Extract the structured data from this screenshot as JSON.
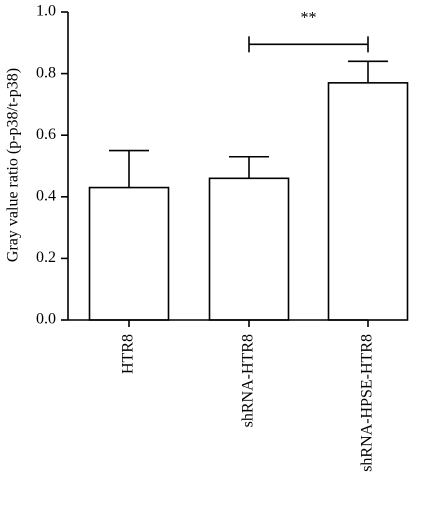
{
  "chart_data": {
    "type": "bar",
    "categories": [
      "HTR8",
      "shRNA-HTR8",
      "shRNA-HPSE-HTR8"
    ],
    "values": [
      0.43,
      0.46,
      0.77
    ],
    "errors": [
      0.12,
      0.07,
      0.07
    ],
    "title": "",
    "xlabel": "",
    "ylabel": "Gray value ratio (p-p38/t-p38)",
    "ylim": [
      0,
      1.0
    ],
    "yticks": [
      0.0,
      0.2,
      0.4,
      0.6,
      0.8,
      1.0
    ],
    "ytick_labels": [
      "0.0",
      "0.2",
      "0.4",
      "0.6",
      "0.8",
      "1.0"
    ],
    "grid": false,
    "annotations": [
      {
        "text": "**",
        "from_category": "shRNA-HTR8",
        "to_category": "shRNA-HPSE-HTR8",
        "y": 0.895
      }
    ],
    "colors": {
      "bar_fill": "#ffffff",
      "bar_stroke": "#000000"
    }
  }
}
